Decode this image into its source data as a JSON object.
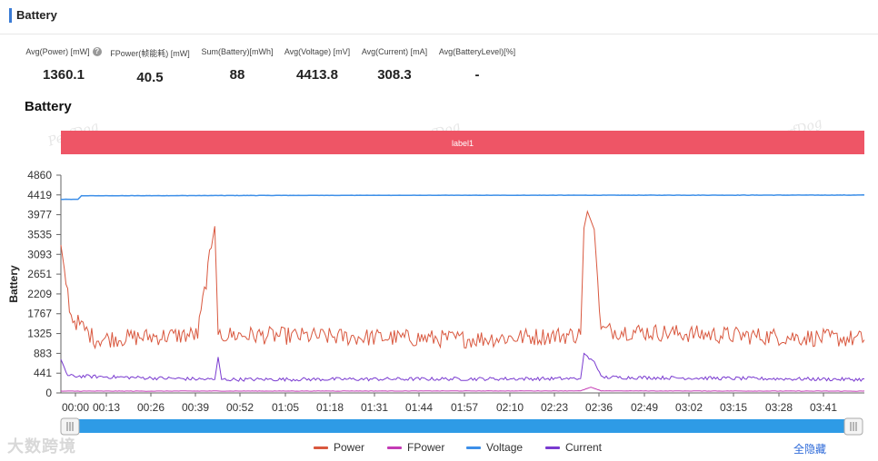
{
  "section": {
    "title": "Battery"
  },
  "metrics": [
    {
      "label": "Avg(Power) [mW]",
      "value": "1360.1",
      "help": true
    },
    {
      "label": "FPower(帧能耗) [mW]",
      "value": "40.5"
    },
    {
      "label": "Sum(Battery)[mWh]",
      "value": "88"
    },
    {
      "label": "Avg(Voltage) [mV]",
      "value": "4413.8"
    },
    {
      "label": "Avg(Current) [mA]",
      "value": "308.3"
    },
    {
      "label": "Avg(BatteryLevel)[%]",
      "value": "-"
    }
  ],
  "chart_title": "Battery",
  "watermark": "PerfDog",
  "brand_watermark": "大数跨境",
  "hide_all_label": "全隐藏",
  "icons": {
    "help": "help-circle-icon",
    "slider_handle": "drag-handle-icon"
  },
  "chart_data": {
    "type": "line",
    "ylabel": "Battery",
    "xlabel": "",
    "ylim": [
      0,
      4860
    ],
    "yticks": [
      0,
      441,
      883,
      1325,
      1767,
      2209,
      2651,
      3093,
      3535,
      3977,
      4419,
      4860
    ],
    "xticks": [
      "00:00",
      "00:13",
      "00:26",
      "00:39",
      "00:52",
      "01:05",
      "01:18",
      "01:31",
      "01:44",
      "01:57",
      "02:10",
      "02:23",
      "02:36",
      "02:49",
      "03:02",
      "03:15",
      "03:28",
      "03:41"
    ],
    "duration_seconds": 235,
    "label_band": {
      "text": "label1",
      "color": "#ee5566"
    },
    "grid": false,
    "legend_position": "bottom",
    "series": [
      {
        "name": "Power",
        "color": "#d9583f",
        "baseline": 1330,
        "noise": 200,
        "key_points": [
          [
            0,
            3300
          ],
          [
            3,
            1700
          ],
          [
            10,
            1200
          ],
          [
            40,
            1300
          ],
          [
            45,
            3720
          ],
          [
            46,
            1300
          ],
          [
            120,
            1200
          ],
          [
            152,
            1300
          ],
          [
            153,
            3680
          ],
          [
            154,
            4050
          ],
          [
            156,
            3650
          ],
          [
            158,
            1400
          ],
          [
            190,
            1300
          ],
          [
            235,
            1200
          ]
        ]
      },
      {
        "name": "FPower",
        "color": "#c43bb5",
        "baseline": 40,
        "noise": 4,
        "key_points": [
          [
            0,
            40
          ],
          [
            152,
            45
          ],
          [
            155,
            130
          ],
          [
            158,
            45
          ],
          [
            235,
            40
          ]
        ]
      },
      {
        "name": "Voltage",
        "color": "#3d8fe8",
        "baseline": 4420,
        "noise": 3,
        "key_points": [
          [
            0,
            4320
          ],
          [
            5,
            4320
          ],
          [
            6,
            4400
          ],
          [
            90,
            4410
          ],
          [
            235,
            4415
          ]
        ]
      },
      {
        "name": "Current",
        "color": "#7a3bd0",
        "baseline": 300,
        "noise": 40,
        "key_points": [
          [
            0,
            750
          ],
          [
            2,
            380
          ],
          [
            45,
            300
          ],
          [
            46,
            800
          ],
          [
            47,
            300
          ],
          [
            152,
            320
          ],
          [
            153,
            880
          ],
          [
            156,
            700
          ],
          [
            158,
            350
          ],
          [
            235,
            300
          ]
        ]
      }
    ]
  }
}
